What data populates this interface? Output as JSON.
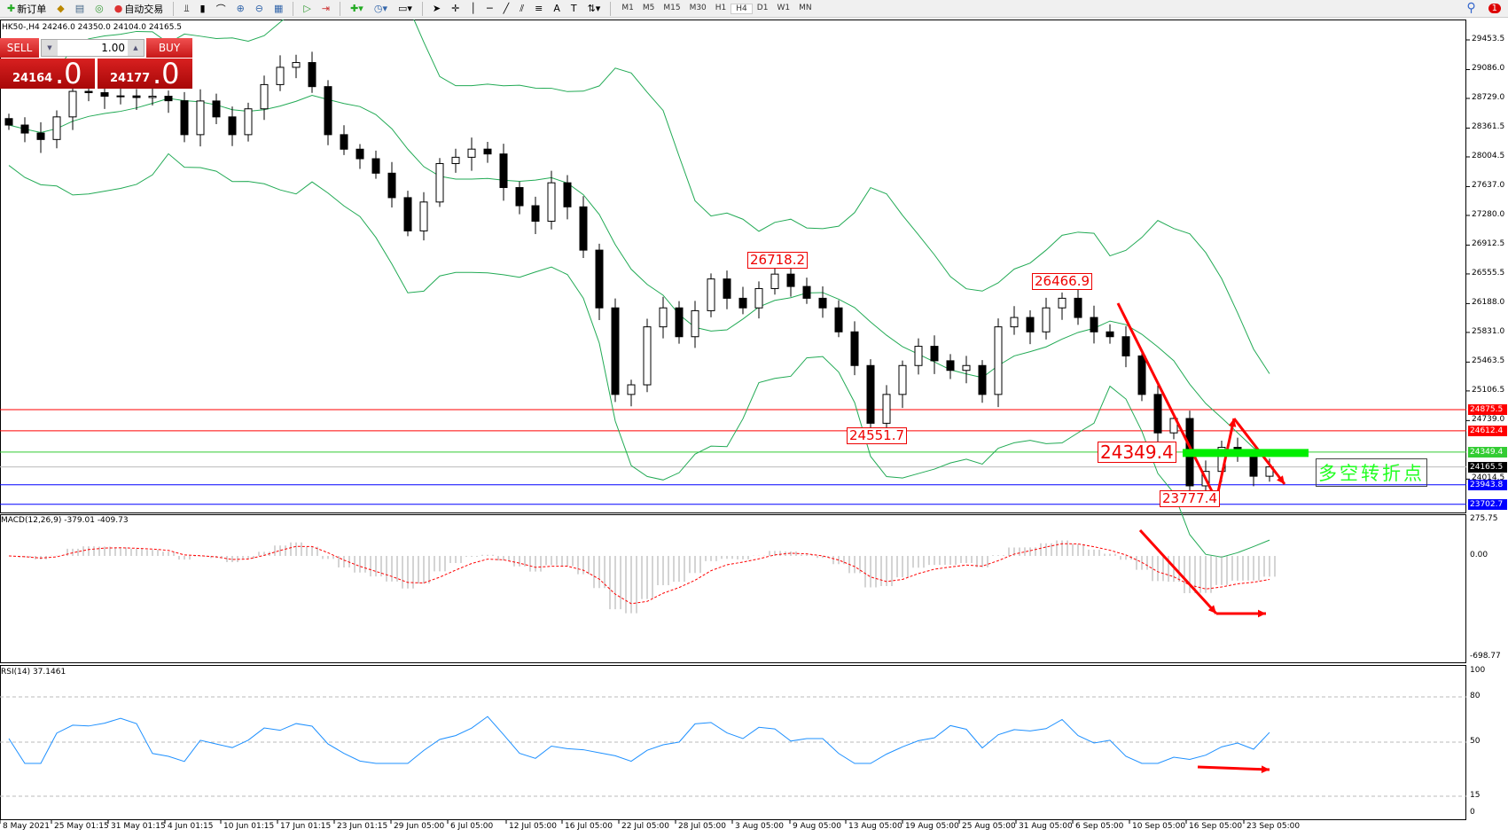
{
  "toolbar": {
    "new_order": "新订单",
    "auto_trading": "自动交易",
    "timeframes": [
      "M1",
      "M5",
      "M15",
      "M30",
      "H1",
      "H4",
      "D1",
      "W1",
      "MN"
    ],
    "active_timeframe": "H4",
    "notification_count": "1"
  },
  "symbol_info": "HK50-,H4  24246.0 24350.0 24104.0 24165.5",
  "trade_panel": {
    "sell_label": "SELL",
    "buy_label": "BUY",
    "lot": "1.00",
    "sell_price_main": "24164",
    "sell_price_big": ".0",
    "buy_price_main": "24177",
    "buy_price_big": ".0"
  },
  "price_axis": [
    "29453.5",
    "29086.0",
    "28729.0",
    "28361.5",
    "28004.5",
    "27637.0",
    "27280.0",
    "26912.5",
    "26555.5",
    "26188.0",
    "25831.0",
    "25463.5",
    "25106.5",
    "24739.0",
    "24014.5"
  ],
  "level_lines": [
    {
      "value": "24875.5",
      "color": "#ff0000"
    },
    {
      "value": "24612.4",
      "color": "#ff0000"
    },
    {
      "value": "24349.4",
      "color": "#33cc33"
    },
    {
      "value": "24165.5",
      "color": "#000000"
    },
    {
      "value": "23943.8",
      "color": "#0000ff"
    },
    {
      "value": "23702.7",
      "color": "#0000ff"
    }
  ],
  "annotations": {
    "high1": "26718.2",
    "high2": "26466.9",
    "low1": "24551.7",
    "pivot": "24349.4",
    "low2": "23777.4",
    "turning_point": "多空转折点"
  },
  "macd": {
    "label": "MACD(12,26,9) -379.01 -409.73",
    "axis": [
      "275.75",
      "0.00",
      "-698.77"
    ]
  },
  "rsi": {
    "label": "RSI(14) 37.1461",
    "axis": [
      "100",
      "80",
      "50",
      "15",
      "0"
    ]
  },
  "time_axis": [
    "8 May 2021",
    "25 May 01:15",
    "31 May 01:15",
    "4 Jun 01:15",
    "10 Jun 01:15",
    "17 Jun 01:15",
    "23 Jun 01:15",
    "29 Jun 05:00",
    "6 Jul 05:00",
    "12 Jul 05:00",
    "16 Jul 05:00",
    "22 Jul 05:00",
    "28 Jul 05:00",
    "3 Aug 05:00",
    "9 Aug 05:00",
    "13 Aug 05:00",
    "19 Aug 05:00",
    "25 Aug 05:00",
    "31 Aug 05:00",
    "6 Sep 05:00",
    "10 Sep 05:00",
    "16 Sep 05:00",
    "23 Sep 05:00"
  ],
  "chart_data": {
    "type": "candlestick",
    "symbol": "HK50-",
    "timeframe": "H4",
    "ylim": [
      23702.7,
      29453.5
    ],
    "close": [
      28399,
      28300,
      28220,
      28500,
      28816,
      28800,
      28756,
      28760,
      28740,
      28756,
      28700,
      28280,
      28697,
      28500,
      28280,
      28600,
      28900,
      29114,
      29173,
      28875,
      28280,
      28100,
      27982,
      27803,
      27500,
      27088,
      27446,
      27922,
      28000,
      28101,
      28041,
      27625,
      27400,
      27208,
      27684,
      27386,
      26850,
      26135,
      25063,
      25182,
      25900,
      26135,
      25778,
      26100,
      26493,
      26254,
      26135,
      26374,
      26553,
      26400,
      26254,
      26135,
      25838,
      25421,
      24706,
      25063,
      25421,
      25659,
      25480,
      25361,
      25421,
      25063,
      25900,
      26016,
      25838,
      26135,
      26254,
      26016,
      25838,
      25778,
      25540,
      25063,
      24587,
      24765,
      23931,
      24110,
      24408,
      24300,
      24050,
      24165.5
    ],
    "colors": {
      "bollinger": "#22aa55",
      "macd_signal": "#ff0000",
      "rsi": "#1e90ff",
      "arrows": "#ff0000"
    }
  }
}
